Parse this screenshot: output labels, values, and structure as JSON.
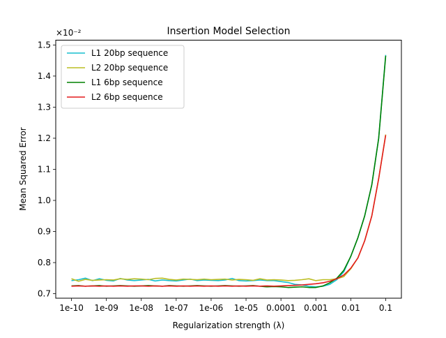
{
  "chart_data": {
    "type": "line",
    "title": "Insertion Model Selection",
    "xlabel": "Regularization strength (λ)",
    "ylabel": "Mean Squared Error",
    "y_offset_label": "×10⁻²",
    "x_scale": "log",
    "xlim": [
      1e-10,
      0.1
    ],
    "ylim": [
      0.7,
      1.5
    ],
    "x_ticks": [
      {
        "value": 1e-10,
        "label": "1e-10"
      },
      {
        "value": 1e-09,
        "label": "1e-09"
      },
      {
        "value": 1e-08,
        "label": "1e-08"
      },
      {
        "value": 1e-07,
        "label": "1e-07"
      },
      {
        "value": 1e-06,
        "label": "1e-06"
      },
      {
        "value": 1e-05,
        "label": "1e-05"
      },
      {
        "value": 0.0001,
        "label": "0.0001"
      },
      {
        "value": 0.001,
        "label": "0.001"
      },
      {
        "value": 0.01,
        "label": "0.01"
      },
      {
        "value": 0.1,
        "label": "0.1"
      }
    ],
    "y_ticks": [
      {
        "value": 0.7,
        "label": "0.7"
      },
      {
        "value": 0.8,
        "label": "0.8"
      },
      {
        "value": 0.9,
        "label": "0.9"
      },
      {
        "value": 1.0,
        "label": "1.0"
      },
      {
        "value": 1.1,
        "label": "1.1"
      },
      {
        "value": 1.2,
        "label": "1.2"
      },
      {
        "value": 1.3,
        "label": "1.3"
      },
      {
        "value": 1.4,
        "label": "1.4"
      },
      {
        "value": 1.5,
        "label": "1.5"
      }
    ],
    "grid": false,
    "legend_position": "top-left",
    "series": [
      {
        "name": "L1 20bp sequence",
        "color": "#17becf",
        "x": [
          1e-10,
          1.6e-10,
          2.5e-10,
          4e-10,
          6.3e-10,
          1e-09,
          1.6e-09,
          2.5e-09,
          4e-09,
          6.3e-09,
          1e-08,
          1.6e-08,
          2.5e-08,
          4e-08,
          6.3e-08,
          1e-07,
          1.6e-07,
          2.5e-07,
          4e-07,
          6.3e-07,
          1e-06,
          1.6e-06,
          2.5e-06,
          4e-06,
          6.3e-06,
          1e-05,
          1.6e-05,
          2.5e-05,
          4e-05,
          6.3e-05,
          0.0001,
          0.00016,
          0.00025,
          0.0004,
          0.00063,
          0.001,
          0.0016,
          0.0025,
          0.004,
          0.0063,
          0.01,
          0.016,
          0.025,
          0.04,
          0.063,
          0.1
        ],
        "y": [
          0.742,
          0.745,
          0.75,
          0.742,
          0.748,
          0.743,
          0.741,
          0.749,
          0.744,
          0.742,
          0.744,
          0.746,
          0.741,
          0.744,
          0.742,
          0.741,
          0.744,
          0.747,
          0.742,
          0.744,
          0.743,
          0.742,
          0.744,
          0.749,
          0.742,
          0.741,
          0.742,
          0.744,
          0.742,
          0.742,
          0.739,
          0.736,
          0.73,
          0.728,
          0.724,
          0.722,
          0.724,
          0.73,
          0.745,
          0.77,
          0.82,
          0.88,
          0.95,
          1.05,
          1.2,
          1.468
        ]
      },
      {
        "name": "L2 20bp sequence",
        "color": "#bcbd22",
        "x": [
          1e-10,
          1.6e-10,
          2.5e-10,
          4e-10,
          6.3e-10,
          1e-09,
          1.6e-09,
          2.5e-09,
          4e-09,
          6.3e-09,
          1e-08,
          1.6e-08,
          2.5e-08,
          4e-08,
          6.3e-08,
          1e-07,
          1.6e-07,
          2.5e-07,
          4e-07,
          6.3e-07,
          1e-06,
          1.6e-06,
          2.5e-06,
          4e-06,
          6.3e-06,
          1e-05,
          1.6e-05,
          2.5e-05,
          4e-05,
          6.3e-05,
          0.0001,
          0.00016,
          0.00025,
          0.0004,
          0.00063,
          0.001,
          0.0016,
          0.0025,
          0.004,
          0.0063,
          0.01,
          0.016,
          0.025,
          0.04,
          0.063,
          0.1
        ],
        "y": [
          0.748,
          0.74,
          0.746,
          0.743,
          0.744,
          0.745,
          0.744,
          0.748,
          0.746,
          0.748,
          0.747,
          0.745,
          0.749,
          0.75,
          0.746,
          0.744,
          0.747,
          0.746,
          0.745,
          0.747,
          0.745,
          0.746,
          0.747,
          0.744,
          0.746,
          0.745,
          0.743,
          0.748,
          0.744,
          0.745,
          0.744,
          0.742,
          0.743,
          0.745,
          0.748,
          0.742,
          0.745,
          0.745,
          0.748,
          0.755,
          0.78,
          0.815,
          0.87,
          0.95,
          1.07,
          1.212
        ]
      },
      {
        "name": "L1 6bp sequence",
        "color": "#008000",
        "x": [
          1e-10,
          1.6e-10,
          2.5e-10,
          4e-10,
          6.3e-10,
          1e-09,
          1.6e-09,
          2.5e-09,
          4e-09,
          6.3e-09,
          1e-08,
          1.6e-08,
          2.5e-08,
          4e-08,
          6.3e-08,
          1e-07,
          1.6e-07,
          2.5e-07,
          4e-07,
          6.3e-07,
          1e-06,
          1.6e-06,
          2.5e-06,
          4e-06,
          6.3e-06,
          1e-05,
          1.6e-05,
          2.5e-05,
          4e-05,
          6.3e-05,
          0.0001,
          0.00016,
          0.00025,
          0.0004,
          0.00063,
          0.001,
          0.0016,
          0.0025,
          0.004,
          0.0063,
          0.01,
          0.016,
          0.025,
          0.04,
          0.063,
          0.1
        ],
        "y": [
          0.725,
          0.726,
          0.724,
          0.725,
          0.726,
          0.724,
          0.725,
          0.726,
          0.725,
          0.724,
          0.725,
          0.726,
          0.725,
          0.724,
          0.726,
          0.725,
          0.724,
          0.725,
          0.726,
          0.725,
          0.724,
          0.725,
          0.726,
          0.725,
          0.724,
          0.725,
          0.726,
          0.724,
          0.722,
          0.723,
          0.722,
          0.72,
          0.721,
          0.722,
          0.72,
          0.72,
          0.725,
          0.735,
          0.75,
          0.775,
          0.82,
          0.88,
          0.95,
          1.05,
          1.2,
          1.465
        ]
      },
      {
        "name": "L2 6bp sequence",
        "color": "#e41a1c",
        "x": [
          1e-10,
          1.6e-10,
          2.5e-10,
          4e-10,
          6.3e-10,
          1e-09,
          1.6e-09,
          2.5e-09,
          4e-09,
          6.3e-09,
          1e-08,
          1.6e-08,
          2.5e-08,
          4e-08,
          6.3e-08,
          1e-07,
          1.6e-07,
          2.5e-07,
          4e-07,
          6.3e-07,
          1e-06,
          1.6e-06,
          2.5e-06,
          4e-06,
          6.3e-06,
          1e-05,
          1.6e-05,
          2.5e-05,
          4e-05,
          6.3e-05,
          0.0001,
          0.00016,
          0.00025,
          0.0004,
          0.00063,
          0.001,
          0.0016,
          0.0025,
          0.004,
          0.0063,
          0.01,
          0.016,
          0.025,
          0.04,
          0.063,
          0.1
        ],
        "y": [
          0.724,
          0.725,
          0.724,
          0.725,
          0.724,
          0.725,
          0.724,
          0.725,
          0.724,
          0.725,
          0.725,
          0.724,
          0.725,
          0.724,
          0.725,
          0.724,
          0.725,
          0.724,
          0.725,
          0.724,
          0.725,
          0.724,
          0.725,
          0.724,
          0.725,
          0.724,
          0.725,
          0.724,
          0.725,
          0.724,
          0.725,
          0.726,
          0.727,
          0.728,
          0.73,
          0.732,
          0.735,
          0.74,
          0.748,
          0.76,
          0.782,
          0.815,
          0.87,
          0.95,
          1.07,
          1.21
        ]
      }
    ]
  }
}
